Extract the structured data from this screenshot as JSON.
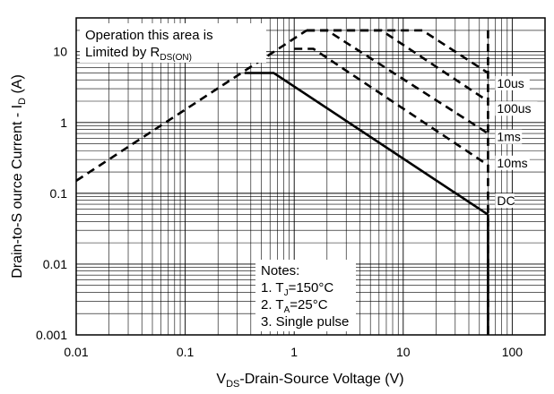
{
  "chart_data": {
    "type": "line",
    "title": "",
    "xlabel": {
      "prefix": "V",
      "sub": "DS",
      "suffix": "-Drain-Source Voltage (V)"
    },
    "ylabel": {
      "prefix": "Drain-to-S ource Current - I",
      "sub": "D",
      "suffix": " (A)"
    },
    "xscale": "log",
    "yscale": "log",
    "xlim": [
      0.01,
      200
    ],
    "ylim": [
      0.001,
      30
    ],
    "grid": true,
    "x_ticks": [
      {
        "value": 0.01,
        "label": "0.01"
      },
      {
        "value": 0.1,
        "label": "0.1"
      },
      {
        "value": 1,
        "label": "1"
      },
      {
        "value": 10,
        "label": "10"
      },
      {
        "value": 100,
        "label": "100"
      }
    ],
    "y_ticks": [
      {
        "value": 0.001,
        "label": "0.001"
      },
      {
        "value": 0.01,
        "label": "0.01"
      },
      {
        "value": 0.1,
        "label": "0.1"
      },
      {
        "value": 1,
        "label": "1"
      },
      {
        "value": 10,
        "label": "10"
      }
    ],
    "series": [
      {
        "name": "10us",
        "style": "dashed",
        "label_at": [
          60,
          3.2
        ],
        "points": [
          [
            1.3,
            20
          ],
          [
            15,
            20
          ],
          [
            60,
            5
          ]
        ]
      },
      {
        "name": "100us",
        "style": "dashed",
        "label_at": [
          60,
          1.4
        ],
        "points": [
          [
            1.3,
            20
          ],
          [
            6.3,
            20
          ],
          [
            60,
            2
          ]
        ]
      },
      {
        "name": "1ms",
        "style": "dashed",
        "label_at": [
          60,
          0.56
        ],
        "points": [
          [
            1.3,
            20
          ],
          [
            2.0,
            20
          ],
          [
            60,
            0.7
          ]
        ]
      },
      {
        "name": "10ms",
        "style": "dashed",
        "label_at": [
          60,
          0.24
        ],
        "points": [
          [
            1.0,
            11
          ],
          [
            1.5,
            11
          ],
          [
            60,
            0.25
          ]
        ]
      },
      {
        "name": "DC",
        "style": "solid",
        "label_at": [
          60,
          0.07
        ],
        "points": [
          [
            0.35,
            5
          ],
          [
            0.65,
            5
          ],
          [
            60,
            0.05
          ]
        ]
      },
      {
        "name": "RDS(ON) limit",
        "style": "dashed",
        "points": [
          [
            0.01,
            0.15
          ],
          [
            1.3,
            20
          ]
        ]
      },
      {
        "name": "VDS limit",
        "style": "dashed",
        "points": [
          [
            60,
            20
          ],
          [
            60,
            0.001
          ]
        ]
      },
      {
        "name": "DC VDS limit",
        "style": "solid",
        "points": [
          [
            60,
            0.05
          ],
          [
            60,
            0.001
          ]
        ]
      }
    ],
    "annotations": {
      "limit_line1": "Operation this area is",
      "limit_line2_prefix": "Limited  by R",
      "limit_line2_sub": "DS(ON)",
      "notes_title": "Notes:",
      "note1_prefix": "1. T",
      "note1_sub": "J",
      "note1_suffix": "=150°C",
      "note2_prefix": "2. T",
      "note2_sub": "A",
      "note2_suffix": "=25°C",
      "note3": "3. Single pulse"
    }
  }
}
